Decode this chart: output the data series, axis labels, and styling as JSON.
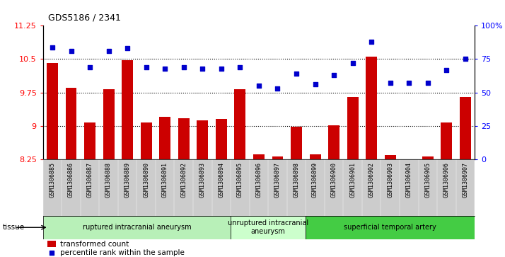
{
  "title": "GDS5186 / 2341",
  "samples": [
    "GSM1306885",
    "GSM1306886",
    "GSM1306887",
    "GSM1306888",
    "GSM1306889",
    "GSM1306890",
    "GSM1306891",
    "GSM1306892",
    "GSM1306893",
    "GSM1306894",
    "GSM1306895",
    "GSM1306896",
    "GSM1306897",
    "GSM1306898",
    "GSM1306899",
    "GSM1306900",
    "GSM1306901",
    "GSM1306902",
    "GSM1306903",
    "GSM1306904",
    "GSM1306905",
    "GSM1306906",
    "GSM1306907"
  ],
  "bar_values": [
    10.42,
    9.85,
    9.07,
    9.82,
    10.47,
    9.07,
    9.2,
    9.17,
    9.12,
    9.15,
    9.82,
    8.36,
    8.32,
    8.98,
    8.36,
    9.02,
    9.65,
    10.55,
    8.35,
    8.25,
    8.32,
    9.08,
    9.65
  ],
  "blue_values": [
    84,
    81,
    69,
    81,
    83,
    69,
    68,
    69,
    68,
    68,
    69,
    55,
    53,
    64,
    56,
    63,
    72,
    88,
    57,
    57,
    57,
    67,
    75
  ],
  "ylim_left": [
    8.25,
    11.25
  ],
  "ylim_right": [
    0,
    100
  ],
  "yticks_left": [
    8.25,
    9.0,
    9.75,
    10.5,
    11.25
  ],
  "yticks_right": [
    0,
    25,
    50,
    75,
    100
  ],
  "ytick_labels_left": [
    "8.25",
    "9",
    "9.75",
    "10.5",
    "11.25"
  ],
  "ytick_labels_right": [
    "0",
    "25",
    "50",
    "75",
    "100%"
  ],
  "bar_color": "#cc0000",
  "dot_color": "#0000cc",
  "bar_bottom": 8.25,
  "hgrid_lines": [
    9.0,
    9.75,
    10.5
  ],
  "group_boundaries": [
    0,
    10,
    14,
    23
  ],
  "group_labels": [
    "ruptured intracranial aneurysm",
    "unruptured intracranial\naneurysm",
    "superficial temporal artery"
  ],
  "group_colors": [
    "#b8f0b8",
    "#ccffcc",
    "#44cc44"
  ],
  "legend_bar_label": "transformed count",
  "legend_dot_label": "percentile rank within the sample",
  "tissue_label": "tissue",
  "xtick_bg_color": "#cccccc",
  "plot_bg_color": "#ffffff"
}
